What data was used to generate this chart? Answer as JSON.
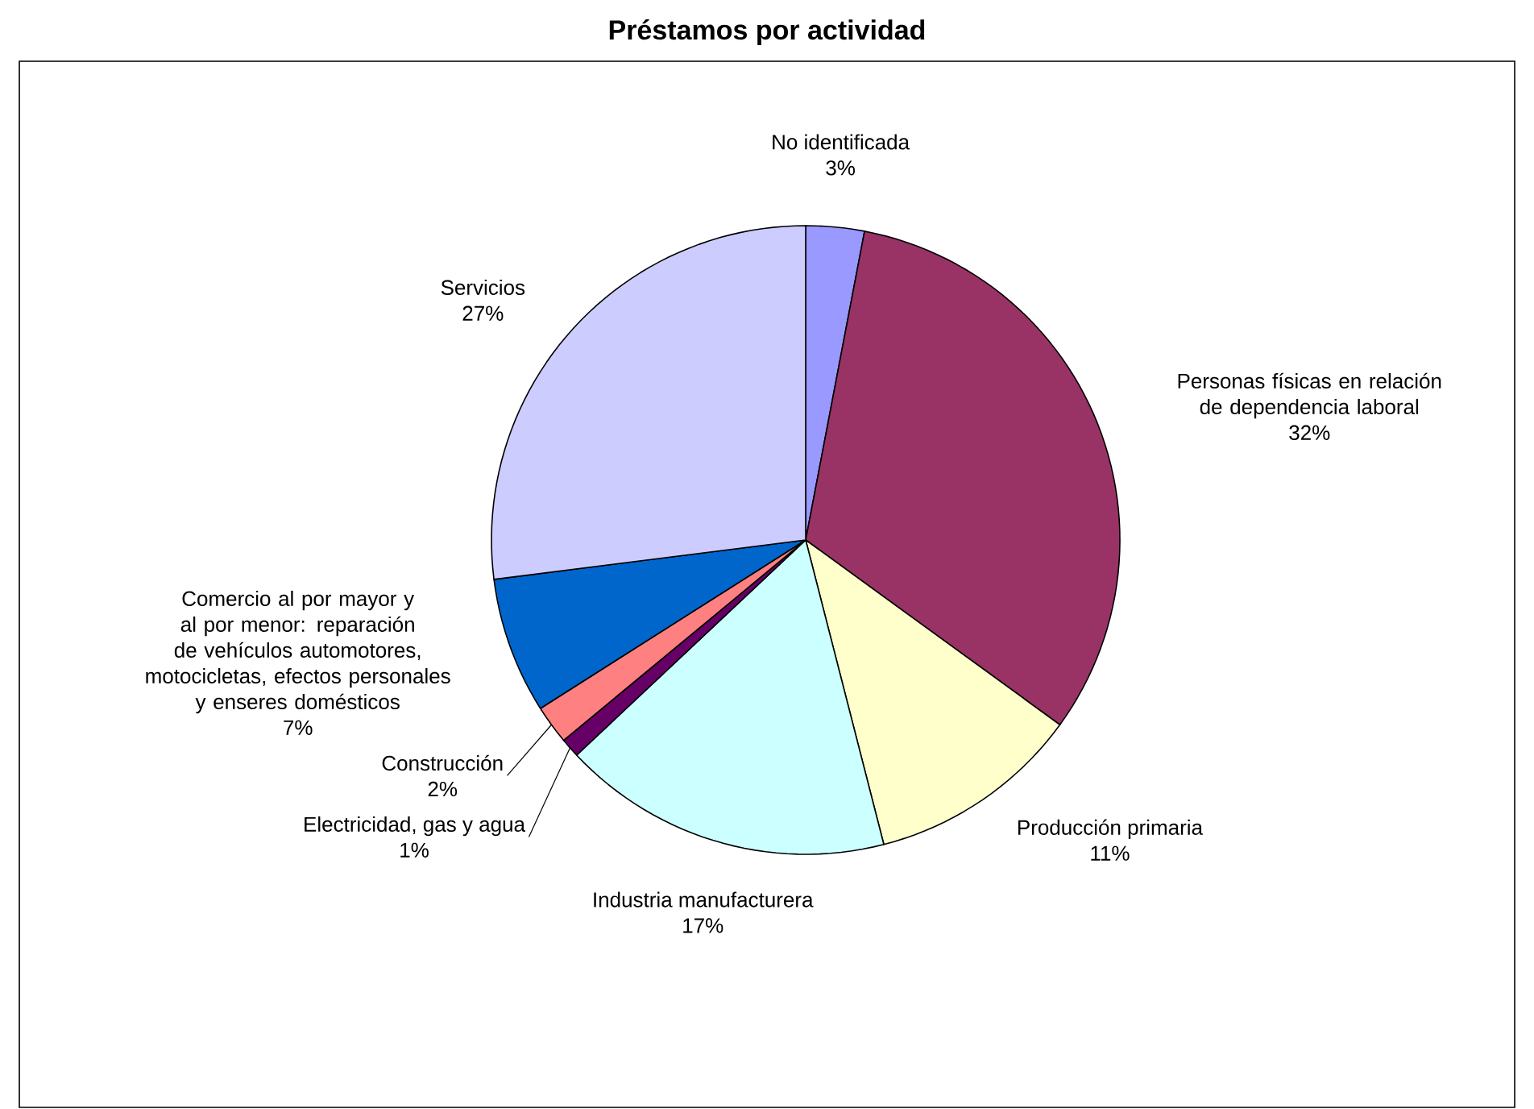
{
  "chart_data": {
    "type": "pie",
    "title": "Préstamos por actividad",
    "categories": [
      "No identificada",
      "Personas físicas en relación de dependencia laboral",
      "Producción primaria",
      "Industria manufacturera",
      "Electricidad, gas y agua",
      "Construcción",
      "Comercio al por mayor y al por menor: reparación de vehículos automotores, motocicletas, efectos personales y enseres domésticos",
      "Servicios"
    ],
    "values": [
      3,
      32,
      11,
      17,
      1,
      2,
      7,
      27
    ],
    "value_labels": [
      "3%",
      "32%",
      "11%",
      "17%",
      "1%",
      "2%",
      "7%",
      "27%"
    ],
    "colors": [
      "#9999ff",
      "#993366",
      "#ffffcc",
      "#ccffff",
      "#660066",
      "#ff8080",
      "#0066cc",
      "#ccccff"
    ]
  }
}
